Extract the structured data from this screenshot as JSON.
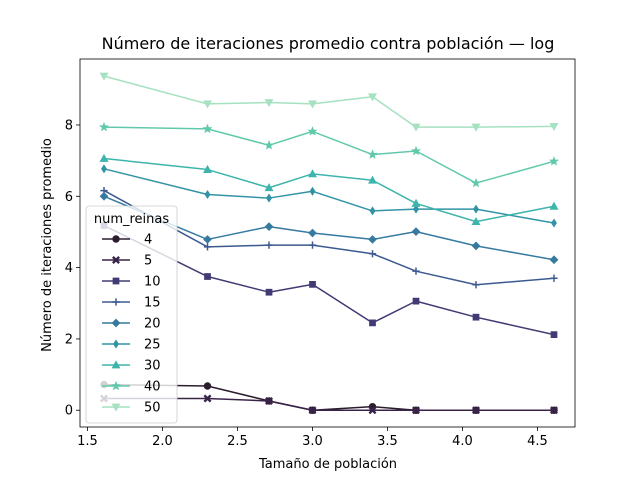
{
  "chart_data": {
    "type": "line",
    "title": "Número de iteraciones promedio contra población — log",
    "xlabel": "Tamaño de población",
    "ylabel": "Número de iteraciones promedio",
    "xlim": [
      1.45,
      4.75
    ],
    "ylim": [
      -0.47,
      9.85
    ],
    "xticks": [
      1.5,
      2.0,
      2.5,
      3.0,
      3.5,
      4.0,
      4.5
    ],
    "xtick_labels": [
      "1.5",
      "2.0",
      "2.5",
      "3.0",
      "3.5",
      "4.0",
      "4.5"
    ],
    "yticks": [
      0,
      2,
      4,
      6,
      8
    ],
    "ytick_labels": [
      "0",
      "2",
      "4",
      "6",
      "8"
    ],
    "grid": false,
    "legend": {
      "title": "num_reinas",
      "placement": "center-left"
    },
    "x": [
      1.61,
      2.3,
      2.71,
      3.0,
      3.4,
      3.69,
      4.09,
      4.61
    ],
    "series": [
      {
        "name": "4",
        "color": "#2b1d2e",
        "marker": "circle",
        "values": [
          0.72,
          0.68,
          0.26,
          0.0,
          0.1,
          0.0,
          0.0,
          0.0
        ]
      },
      {
        "name": "5",
        "color": "#3a2349",
        "marker": "x",
        "values": [
          0.33,
          0.33,
          0.26,
          0.0,
          0.0,
          0.0,
          0.0,
          0.0
        ]
      },
      {
        "name": "10",
        "color": "#413b74",
        "marker": "square",
        "values": [
          5.18,
          3.75,
          3.31,
          3.53,
          2.45,
          3.06,
          2.61,
          2.12
        ]
      },
      {
        "name": "15",
        "color": "#3c5a91",
        "marker": "plus",
        "values": [
          6.16,
          4.58,
          4.63,
          4.63,
          4.39,
          3.9,
          3.52,
          3.7
        ]
      },
      {
        "name": "20",
        "color": "#367aa0",
        "marker": "diamond",
        "values": [
          6.0,
          4.79,
          5.15,
          4.97,
          4.79,
          5.01,
          4.61,
          4.22
        ]
      },
      {
        "name": "25",
        "color": "#3293a6",
        "marker": "thin_diamond",
        "values": [
          6.77,
          6.05,
          5.95,
          6.14,
          5.59,
          5.64,
          5.64,
          5.25
        ]
      },
      {
        "name": "30",
        "color": "#3eb5ac",
        "marker": "triangle_up",
        "values": [
          7.06,
          6.75,
          6.24,
          6.63,
          6.45,
          5.8,
          5.29,
          5.72
        ]
      },
      {
        "name": "40",
        "color": "#61c9ab",
        "marker": "star",
        "values": [
          7.94,
          7.89,
          7.43,
          7.82,
          7.17,
          7.27,
          6.37,
          6.98
        ]
      },
      {
        "name": "50",
        "color": "#a6e1c0",
        "marker": "triangle_down",
        "values": [
          9.37,
          8.59,
          8.63,
          8.59,
          8.79,
          7.94,
          7.94,
          7.96
        ]
      }
    ]
  }
}
